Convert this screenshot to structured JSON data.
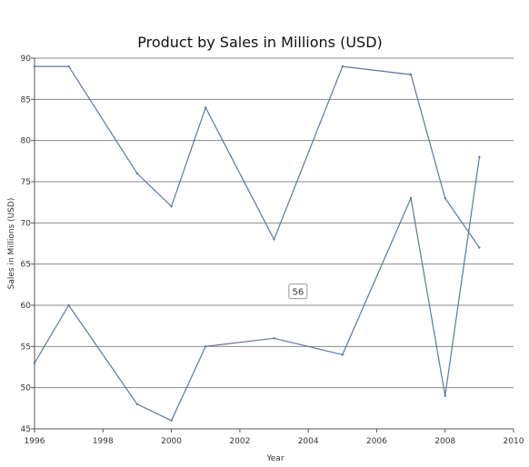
{
  "chart_data": {
    "type": "line",
    "title": "Product by Sales in Millions (USD)",
    "xlabel": "Year",
    "ylabel": "Sales in Millions (USD)",
    "xlim": [
      1996,
      2010
    ],
    "ylim": [
      45,
      90
    ],
    "x_ticks": [
      1996,
      1998,
      2000,
      2002,
      2004,
      2006,
      2008,
      2010
    ],
    "y_ticks": [
      45,
      50,
      55,
      60,
      65,
      70,
      75,
      80,
      85,
      90
    ],
    "grid": "horizontal",
    "series": [
      {
        "x": [
          1996,
          1997,
          1999,
          2000,
          2001,
          2003,
          2005,
          2007,
          2008,
          2009
        ],
        "values": [
          89,
          89,
          76,
          72,
          84,
          68,
          89,
          88,
          73,
          67
        ]
      },
      {
        "x": [
          1996,
          1997,
          1999,
          2000,
          2001,
          2003,
          2005,
          2007,
          2008,
          2009
        ],
        "values": [
          53,
          60,
          48,
          46,
          55,
          56,
          54,
          73,
          49,
          78
        ]
      }
    ],
    "annotation": {
      "text": "56",
      "x": 2003.7,
      "y": 61.7
    },
    "colors": {
      "line": "#5a78a0",
      "grid": "#8a8a8a",
      "axis": "#555555"
    }
  }
}
